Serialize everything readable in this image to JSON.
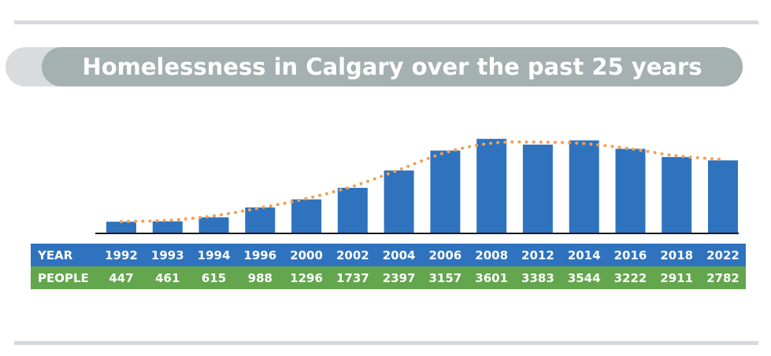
{
  "title": "Homelessness in Calgary over the past 25 years",
  "table": {
    "year_label": "YEAR",
    "people_label": "PEOPLE"
  },
  "colors": {
    "bar": "#2f73bf",
    "trend": "#f0a058",
    "year_row": "#2f73bf",
    "people_row": "#63a64d",
    "title_pill": "#a5b0b0"
  },
  "chart_data": {
    "type": "bar",
    "title": "Homelessness in Calgary over the past 25 years",
    "categories": [
      "1992",
      "1993",
      "1994",
      "1996",
      "2000",
      "2002",
      "2004",
      "2006",
      "2008",
      "2012",
      "2014",
      "2016",
      "2018",
      "2022"
    ],
    "series": [
      {
        "values": [
          447,
          461,
          615,
          988,
          1296,
          1737,
          2397,
          3157,
          3601,
          3383,
          3544,
          3222,
          2911,
          2782
        ]
      }
    ],
    "trendline": {
      "style": "dotted",
      "color": "#f0a058"
    },
    "axis_labels_visible": false,
    "grid": false
  }
}
